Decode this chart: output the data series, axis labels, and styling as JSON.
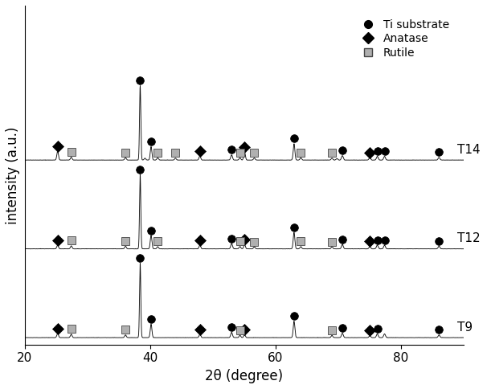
{
  "xlabel": "2θ (degree)",
  "ylabel": "intensity (a.u.)",
  "xlim": [
    20,
    90
  ],
  "series_labels": [
    "T9",
    "T12",
    "T14"
  ],
  "background_color": "#ffffff",
  "line_color": "#111111",
  "ti_peaks": [
    38.43,
    40.17,
    53.0,
    62.95,
    70.65,
    76.22,
    77.37,
    86.05
  ],
  "ti_heights": [
    10.0,
    1.8,
    0.7,
    2.2,
    0.6,
    0.5,
    0.5,
    0.35
  ],
  "ti_widths": [
    0.1,
    0.13,
    0.14,
    0.13,
    0.14,
    0.14,
    0.14,
    0.14
  ],
  "anatase_peaks": [
    25.28,
    47.95,
    53.89,
    55.06,
    62.68,
    75.03
  ],
  "anatase_heights_T9": [
    0.55,
    0.45,
    0.0,
    0.4,
    0.0,
    0.25
  ],
  "anatase_heights_T12": [
    0.5,
    0.5,
    0.0,
    0.6,
    0.0,
    0.3
  ],
  "anatase_heights_T14": [
    1.2,
    0.55,
    0.0,
    1.1,
    0.0,
    0.35
  ],
  "anatase_widths": [
    0.13,
    0.13,
    0.13,
    0.13,
    0.13,
    0.13
  ],
  "rutile_peaks": [
    27.45,
    36.09,
    39.19,
    41.23,
    44.05,
    54.33,
    56.62,
    64.03,
    68.99,
    69.79
  ],
  "rutile_heights_T9": [
    0.45,
    0.35,
    0.0,
    0.0,
    0.0,
    0.3,
    0.0,
    0.0,
    0.28,
    0.0
  ],
  "rutile_heights_T12": [
    0.4,
    0.35,
    0.0,
    0.3,
    0.0,
    0.32,
    0.28,
    0.3,
    0.28,
    0.0
  ],
  "rutile_heights_T14": [
    0.38,
    0.33,
    0.25,
    0.3,
    0.25,
    0.3,
    0.28,
    0.3,
    0.25,
    0.2
  ],
  "rutile_widths": [
    0.13,
    0.13,
    0.13,
    0.13,
    0.13,
    0.13,
    0.13,
    0.13,
    0.13,
    0.13
  ],
  "offsets": [
    0.0,
    1.55,
    3.1
  ],
  "scale": 1.3,
  "ti_marker_peaks_T9": [
    38.43,
    40.17,
    53.0,
    62.95,
    70.65,
    76.22,
    86.05
  ],
  "ti_marker_peaks_T12": [
    38.43,
    40.17,
    53.0,
    62.95,
    70.65,
    76.22,
    77.37,
    86.05
  ],
  "ti_marker_peaks_T14": [
    38.43,
    40.17,
    53.0,
    62.95,
    70.65,
    76.22,
    77.37,
    86.05
  ],
  "anatase_marker_T9": [
    25.28,
    47.95,
    55.06,
    75.03
  ],
  "anatase_marker_T12": [
    25.28,
    47.95,
    55.06,
    75.03
  ],
  "anatase_marker_T14": [
    25.28,
    47.95,
    55.06,
    75.03
  ],
  "rutile_marker_T9": [
    27.45,
    36.09,
    54.33,
    68.99
  ],
  "rutile_marker_T12": [
    27.45,
    36.09,
    41.23,
    54.33,
    56.62,
    64.03,
    68.99
  ],
  "rutile_marker_T14": [
    27.45,
    36.09,
    41.23,
    44.05,
    54.33,
    56.62,
    64.03,
    68.99
  ]
}
